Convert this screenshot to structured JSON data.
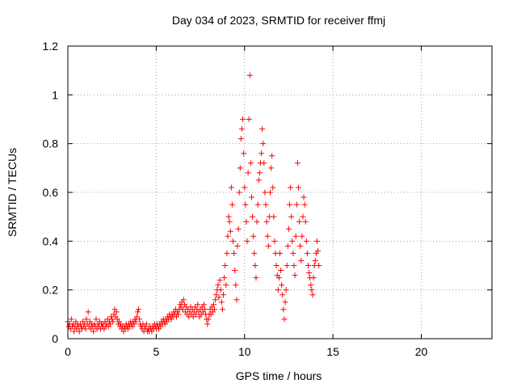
{
  "chart_data": {
    "type": "scatter",
    "title": "Day 034 of 2023, SRMTID for receiver ffmj",
    "xlabel": "GPS time / hours",
    "ylabel": "SRMTID / TECUs",
    "xlim": [
      0,
      24
    ],
    "ylim": [
      0,
      1.2
    ],
    "xticks": [
      {
        "value": 0,
        "label": "0"
      },
      {
        "value": 5,
        "label": "5"
      },
      {
        "value": 10,
        "label": "10"
      },
      {
        "value": 15,
        "label": "15"
      },
      {
        "value": 20,
        "label": "20"
      }
    ],
    "yticks": [
      {
        "value": 0,
        "label": "0"
      },
      {
        "value": 0.2,
        "label": "0.2"
      },
      {
        "value": 0.4,
        "label": "0.4"
      },
      {
        "value": 0.6,
        "label": "0.6"
      },
      {
        "value": 0.8,
        "label": "0.8"
      },
      {
        "value": 1,
        "label": "1"
      },
      {
        "value": 1.2,
        "label": "1.2"
      }
    ],
    "grid": true,
    "marker": "+",
    "color": "#ff0000",
    "series": [
      {
        "name": "SRMTID",
        "points": [
          [
            0.0,
            0.07
          ],
          [
            0.05,
            0.05
          ],
          [
            0.1,
            0.06
          ],
          [
            0.15,
            0.04
          ],
          [
            0.2,
            0.08
          ],
          [
            0.25,
            0.05
          ],
          [
            0.3,
            0.06
          ],
          [
            0.35,
            0.03
          ],
          [
            0.4,
            0.05
          ],
          [
            0.45,
            0.07
          ],
          [
            0.5,
            0.04
          ],
          [
            0.55,
            0.06
          ],
          [
            0.6,
            0.05
          ],
          [
            0.65,
            0.03
          ],
          [
            0.7,
            0.06
          ],
          [
            0.75,
            0.05
          ],
          [
            0.8,
            0.04
          ],
          [
            0.85,
            0.07
          ],
          [
            0.9,
            0.05
          ],
          [
            0.95,
            0.06
          ],
          [
            1.0,
            0.04
          ],
          [
            1.05,
            0.08
          ],
          [
            1.1,
            0.06
          ],
          [
            1.15,
            0.11
          ],
          [
            1.2,
            0.05
          ],
          [
            1.25,
            0.07
          ],
          [
            1.3,
            0.04
          ],
          [
            1.35,
            0.06
          ],
          [
            1.4,
            0.05
          ],
          [
            1.45,
            0.03
          ],
          [
            1.5,
            0.06
          ],
          [
            1.55,
            0.05
          ],
          [
            1.6,
            0.08
          ],
          [
            1.65,
            0.04
          ],
          [
            1.7,
            0.06
          ],
          [
            1.75,
            0.05
          ],
          [
            1.8,
            0.07
          ],
          [
            1.85,
            0.04
          ],
          [
            1.9,
            0.06
          ],
          [
            1.95,
            0.05
          ],
          [
            2.0,
            0.06
          ],
          [
            2.05,
            0.04
          ],
          [
            2.1,
            0.07
          ],
          [
            2.15,
            0.05
          ],
          [
            2.2,
            0.06
          ],
          [
            2.25,
            0.08
          ],
          [
            2.3,
            0.05
          ],
          [
            2.35,
            0.07
          ],
          [
            2.4,
            0.06
          ],
          [
            2.45,
            0.09
          ],
          [
            2.5,
            0.08
          ],
          [
            2.55,
            0.07
          ],
          [
            2.6,
            0.1
          ],
          [
            2.65,
            0.12
          ],
          [
            2.7,
            0.09
          ],
          [
            2.75,
            0.11
          ],
          [
            2.8,
            0.08
          ],
          [
            2.85,
            0.06
          ],
          [
            2.9,
            0.07
          ],
          [
            2.95,
            0.05
          ],
          [
            3.0,
            0.06
          ],
          [
            3.05,
            0.04
          ],
          [
            3.1,
            0.05
          ],
          [
            3.15,
            0.03
          ],
          [
            3.2,
            0.05
          ],
          [
            3.25,
            0.04
          ],
          [
            3.3,
            0.06
          ],
          [
            3.35,
            0.05
          ],
          [
            3.4,
            0.04
          ],
          [
            3.45,
            0.06
          ],
          [
            3.5,
            0.05
          ],
          [
            3.55,
            0.07
          ],
          [
            3.6,
            0.06
          ],
          [
            3.65,
            0.05
          ],
          [
            3.7,
            0.07
          ],
          [
            3.75,
            0.06
          ],
          [
            3.8,
            0.08
          ],
          [
            3.85,
            0.07
          ],
          [
            3.9,
            0.09
          ],
          [
            3.95,
            0.11
          ],
          [
            4.0,
            0.12
          ],
          [
            4.05,
            0.08
          ],
          [
            4.1,
            0.06
          ],
          [
            4.15,
            0.05
          ],
          [
            4.2,
            0.04
          ],
          [
            4.25,
            0.06
          ],
          [
            4.3,
            0.03
          ],
          [
            4.35,
            0.05
          ],
          [
            4.4,
            0.04
          ],
          [
            4.45,
            0.06
          ],
          [
            4.5,
            0.03
          ],
          [
            4.55,
            0.04
          ],
          [
            4.6,
            0.03
          ],
          [
            4.65,
            0.05
          ],
          [
            4.7,
            0.04
          ],
          [
            4.75,
            0.03
          ],
          [
            4.8,
            0.05
          ],
          [
            4.85,
            0.04
          ],
          [
            4.9,
            0.06
          ],
          [
            4.95,
            0.05
          ],
          [
            5.0,
            0.04
          ],
          [
            5.05,
            0.06
          ],
          [
            5.1,
            0.05
          ],
          [
            5.15,
            0.04
          ],
          [
            5.2,
            0.06
          ],
          [
            5.25,
            0.05
          ],
          [
            5.3,
            0.07
          ],
          [
            5.35,
            0.06
          ],
          [
            5.4,
            0.08
          ],
          [
            5.45,
            0.07
          ],
          [
            5.5,
            0.06
          ],
          [
            5.55,
            0.08
          ],
          [
            5.6,
            0.07
          ],
          [
            5.65,
            0.09
          ],
          [
            5.7,
            0.08
          ],
          [
            5.75,
            0.1
          ],
          [
            5.8,
            0.09
          ],
          [
            5.85,
            0.08
          ],
          [
            5.9,
            0.1
          ],
          [
            5.95,
            0.09
          ],
          [
            6.0,
            0.11
          ],
          [
            6.05,
            0.1
          ],
          [
            6.1,
            0.12
          ],
          [
            6.15,
            0.09
          ],
          [
            6.2,
            0.11
          ],
          [
            6.25,
            0.1
          ],
          [
            6.3,
            0.12
          ],
          [
            6.35,
            0.14
          ],
          [
            6.4,
            0.13
          ],
          [
            6.45,
            0.15
          ],
          [
            6.5,
            0.12
          ],
          [
            6.55,
            0.16
          ],
          [
            6.6,
            0.14
          ],
          [
            6.65,
            0.11
          ],
          [
            6.7,
            0.13
          ],
          [
            6.75,
            0.1
          ],
          [
            6.8,
            0.12
          ],
          [
            6.85,
            0.09
          ],
          [
            6.9,
            0.11
          ],
          [
            6.95,
            0.13
          ],
          [
            7.0,
            0.1
          ],
          [
            7.05,
            0.12
          ],
          [
            7.1,
            0.09
          ],
          [
            7.15,
            0.11
          ],
          [
            7.2,
            0.13
          ],
          [
            7.25,
            0.1
          ],
          [
            7.3,
            0.12
          ],
          [
            7.35,
            0.14
          ],
          [
            7.4,
            0.11
          ],
          [
            7.45,
            0.09
          ],
          [
            7.5,
            0.12
          ],
          [
            7.55,
            0.1
          ],
          [
            7.6,
            0.13
          ],
          [
            7.65,
            0.11
          ],
          [
            7.7,
            0.14
          ],
          [
            7.75,
            0.12
          ],
          [
            7.8,
            0.1
          ],
          [
            7.85,
            0.08
          ],
          [
            7.9,
            0.06
          ],
          [
            7.95,
            0.08
          ],
          [
            8.0,
            0.1
          ],
          [
            8.05,
            0.12
          ],
          [
            8.1,
            0.1
          ],
          [
            8.15,
            0.13
          ],
          [
            8.2,
            0.11
          ],
          [
            8.25,
            0.14
          ],
          [
            8.3,
            0.12
          ],
          [
            8.35,
            0.16
          ],
          [
            8.4,
            0.18
          ],
          [
            8.45,
            0.2
          ],
          [
            8.5,
            0.22
          ],
          [
            8.55,
            0.17
          ],
          [
            8.6,
            0.24
          ],
          [
            8.65,
            0.2
          ],
          [
            8.7,
            0.15
          ],
          [
            8.75,
            0.12
          ],
          [
            8.8,
            0.18
          ],
          [
            8.85,
            0.25
          ],
          [
            8.9,
            0.3
          ],
          [
            8.95,
            0.22
          ],
          [
            9.0,
            0.35
          ],
          [
            9.05,
            0.42
          ],
          [
            9.1,
            0.5
          ],
          [
            9.15,
            0.48
          ],
          [
            9.2,
            0.44
          ],
          [
            9.25,
            0.62
          ],
          [
            9.3,
            0.55
          ],
          [
            9.35,
            0.4
          ],
          [
            9.4,
            0.35
          ],
          [
            9.45,
            0.28
          ],
          [
            9.5,
            0.22
          ],
          [
            9.55,
            0.16
          ],
          [
            9.6,
            0.38
          ],
          [
            9.65,
            0.45
          ],
          [
            9.7,
            0.6
          ],
          [
            9.75,
            0.7
          ],
          [
            9.8,
            0.82
          ],
          [
            9.85,
            0.86
          ],
          [
            9.9,
            0.9
          ],
          [
            9.95,
            0.76
          ],
          [
            10.0,
            0.62
          ],
          [
            10.05,
            0.55
          ],
          [
            10.1,
            0.48
          ],
          [
            10.15,
            0.4
          ],
          [
            10.2,
            0.68
          ],
          [
            10.25,
            0.9
          ],
          [
            10.3,
            1.08
          ],
          [
            10.35,
            0.72
          ],
          [
            10.4,
            0.58
          ],
          [
            10.45,
            0.5
          ],
          [
            10.5,
            0.42
          ],
          [
            10.55,
            0.35
          ],
          [
            10.6,
            0.3
          ],
          [
            10.65,
            0.25
          ],
          [
            10.7,
            0.48
          ],
          [
            10.75,
            0.55
          ],
          [
            10.8,
            0.65
          ],
          [
            10.85,
            0.68
          ],
          [
            10.9,
            0.72
          ],
          [
            10.95,
            0.76
          ],
          [
            11.0,
            0.86
          ],
          [
            11.05,
            0.8
          ],
          [
            11.1,
            0.72
          ],
          [
            11.15,
            0.6
          ],
          [
            11.2,
            0.55
          ],
          [
            11.25,
            0.48
          ],
          [
            11.3,
            0.42
          ],
          [
            11.35,
            0.38
          ],
          [
            11.4,
            0.5
          ],
          [
            11.45,
            0.6
          ],
          [
            11.5,
            0.7
          ],
          [
            11.55,
            0.75
          ],
          [
            11.6,
            0.62
          ],
          [
            11.65,
            0.5
          ],
          [
            11.7,
            0.4
          ],
          [
            11.75,
            0.35
          ],
          [
            11.8,
            0.3
          ],
          [
            11.85,
            0.26
          ],
          [
            11.9,
            0.2
          ],
          [
            11.95,
            0.25
          ],
          [
            12.0,
            0.35
          ],
          [
            12.05,
            0.28
          ],
          [
            12.1,
            0.22
          ],
          [
            12.15,
            0.18
          ],
          [
            12.2,
            0.12
          ],
          [
            12.25,
            0.08
          ],
          [
            12.3,
            0.15
          ],
          [
            12.35,
            0.2
          ],
          [
            12.4,
            0.3
          ],
          [
            12.45,
            0.38
          ],
          [
            12.5,
            0.45
          ],
          [
            12.55,
            0.55
          ],
          [
            12.6,
            0.62
          ],
          [
            12.65,
            0.5
          ],
          [
            12.7,
            0.4
          ],
          [
            12.75,
            0.35
          ],
          [
            12.8,
            0.3
          ],
          [
            12.85,
            0.26
          ],
          [
            12.9,
            0.42
          ],
          [
            12.95,
            0.55
          ],
          [
            13.0,
            0.72
          ],
          [
            13.05,
            0.62
          ],
          [
            13.1,
            0.48
          ],
          [
            13.15,
            0.38
          ],
          [
            13.2,
            0.32
          ],
          [
            13.25,
            0.42
          ],
          [
            13.3,
            0.5
          ],
          [
            13.35,
            0.58
          ],
          [
            13.4,
            0.55
          ],
          [
            13.45,
            0.48
          ],
          [
            13.5,
            0.4
          ],
          [
            13.55,
            0.35
          ],
          [
            13.6,
            0.3
          ],
          [
            13.65,
            0.27
          ],
          [
            13.7,
            0.25
          ],
          [
            13.75,
            0.22
          ],
          [
            13.8,
            0.2
          ],
          [
            13.85,
            0.18
          ],
          [
            13.9,
            0.25
          ],
          [
            13.95,
            0.3
          ],
          [
            14.0,
            0.32
          ],
          [
            14.05,
            0.35
          ],
          [
            14.1,
            0.4
          ],
          [
            14.15,
            0.36
          ],
          [
            14.2,
            0.3
          ]
        ]
      }
    ]
  }
}
